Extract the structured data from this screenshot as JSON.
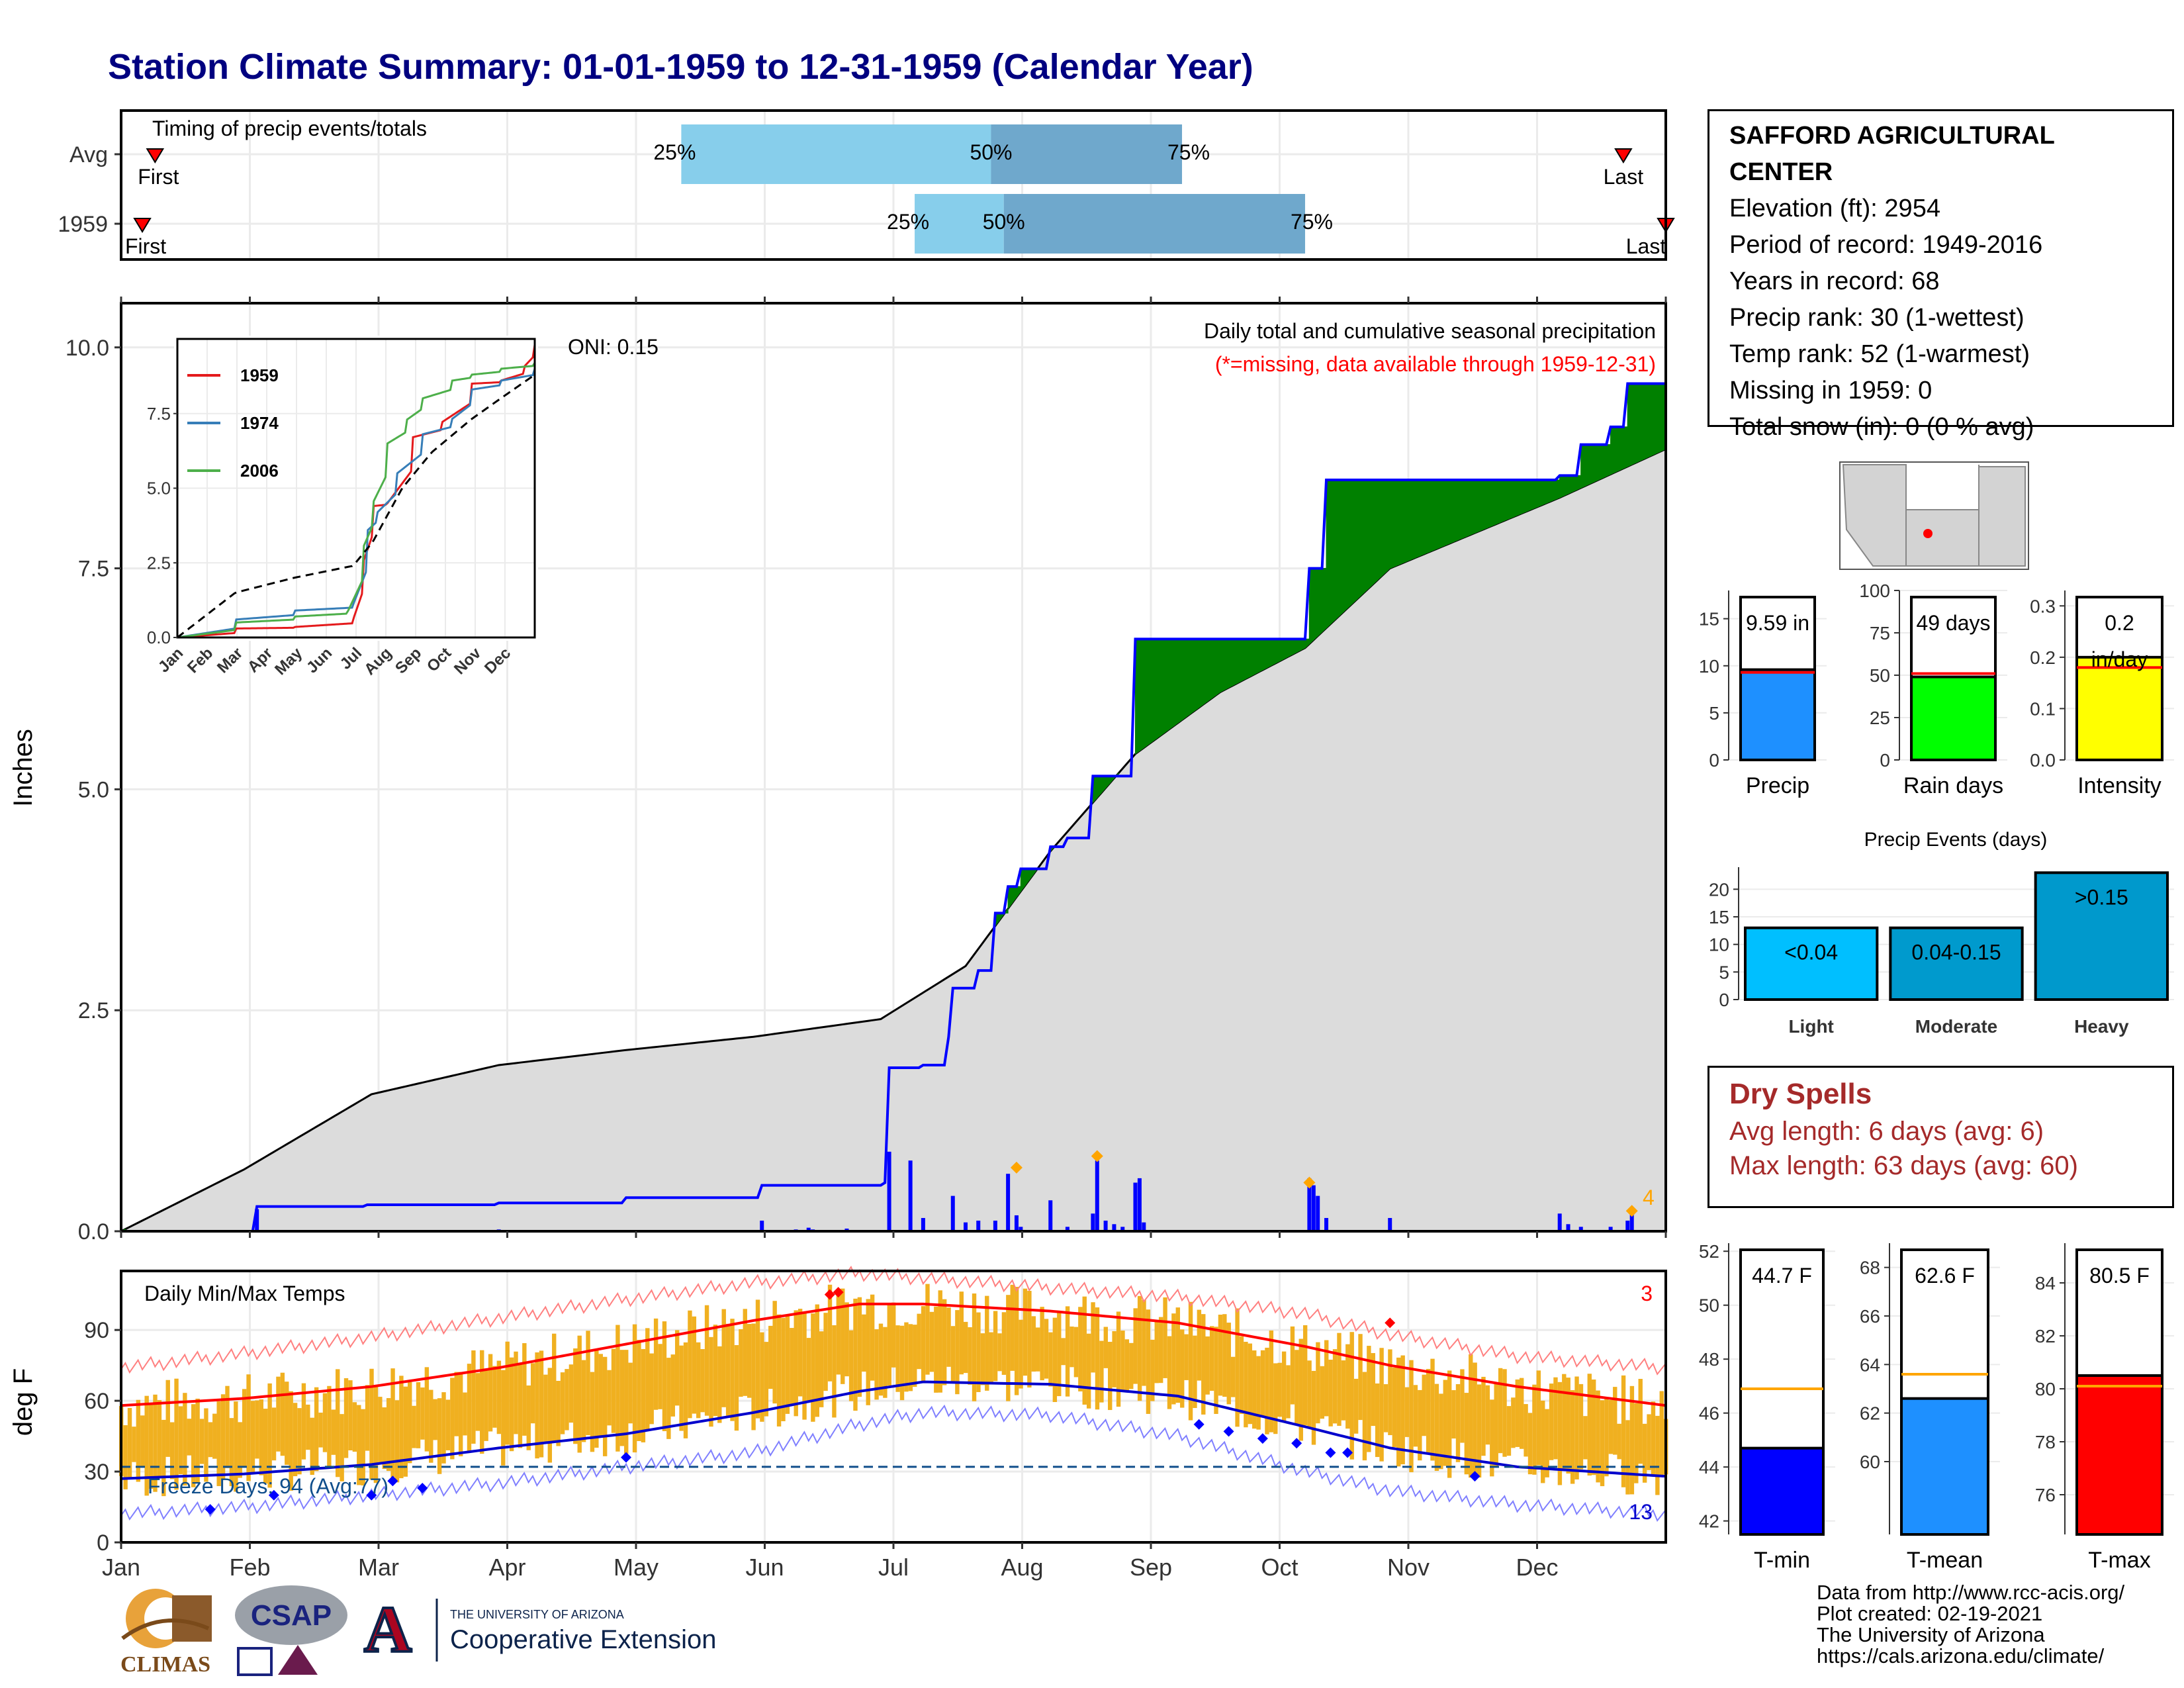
{
  "title": "Station Climate Summary: 01-01-1959 to 12-31-1959 (Calendar Year)",
  "colors": {
    "title": "#000080",
    "precip_area": "#dcdcdc",
    "deficit": "#8b5a00",
    "surplus": "#008000",
    "line": "#0000ff",
    "temp_band": "#f0b020",
    "max_line": "#ff0000",
    "min_line": "#0000cc"
  },
  "timing": {
    "title": "Timing of precip events/totals",
    "rows": [
      {
        "label": "Avg",
        "first": "First",
        "last": "Last",
        "p25": "25%",
        "p50": "50%",
        "p75": "75%",
        "q25_day": 133,
        "q50_day": 206,
        "q75_day": 251,
        "first_day": 9,
        "last_day": 355
      },
      {
        "label": "1959",
        "first": "First",
        "last": "Last",
        "p25": "25%",
        "p50": "50%",
        "p75": "75%",
        "q25_day": 188,
        "q50_day": 209,
        "q75_day": 280,
        "first_day": 6,
        "last_day": 365
      }
    ]
  },
  "chart_data": [
    {
      "type": "area",
      "id": "precip-main",
      "title": "Daily total and cumulative seasonal precipitation",
      "subtitle": "(*=missing, data available through 1959-12-31)",
      "ylabel": "Inches",
      "ylim": [
        0,
        10.5
      ],
      "yticks": [
        "0.0",
        "2.5",
        "5.0",
        "7.5",
        "10.0"
      ],
      "annotation": "ONI: 0.15",
      "count_label": "4",
      "series": [
        {
          "name": "1959 cumulative",
          "x": [
            1,
            32,
            33,
            59,
            90,
            120,
            151,
            152,
            181,
            182,
            190,
            196,
            197,
            203,
            207,
            210,
            213,
            220,
            224,
            230,
            240,
            280,
            281,
            285,
            320,
            340,
            345,
            352,
            356,
            365
          ],
          "values": [
            0,
            0,
            0.28,
            0.3,
            0.32,
            0.38,
            0.38,
            0.52,
            0.55,
            1.85,
            1.88,
            2.2,
            2.75,
            2.95,
            3.6,
            3.9,
            4.1,
            4.35,
            4.45,
            5.15,
            6.7,
            6.7,
            7.5,
            8.5,
            8.5,
            8.55,
            8.9,
            9.1,
            9.59,
            9.59
          ]
        },
        {
          "name": "Avg cumulative",
          "x": [
            1,
            30,
            60,
            90,
            120,
            150,
            180,
            200,
            220,
            240,
            260,
            280,
            300,
            320,
            340,
            365
          ],
          "values": [
            0,
            0.7,
            1.55,
            1.88,
            2.05,
            2.2,
            2.4,
            3.0,
            4.3,
            5.4,
            6.1,
            6.6,
            7.5,
            7.9,
            8.3,
            8.85
          ]
        }
      ]
    },
    {
      "type": "line",
      "id": "inset-cumulative",
      "categories": [
        "Jan",
        "Feb",
        "Mar",
        "Apr",
        "May",
        "Jun",
        "Jul",
        "Aug",
        "Sep",
        "Oct",
        "Nov",
        "Dec"
      ],
      "yticks": [
        "0.0",
        "2.5",
        "5.0",
        "7.5"
      ],
      "ylim": [
        0,
        10
      ],
      "series": [
        {
          "name": "1959",
          "color": "#e41a1c",
          "x": [
            1,
            60,
            120,
            180,
            190,
            200,
            215,
            240,
            270,
            300,
            330,
            355,
            365
          ],
          "values": [
            0,
            0.3,
            0.35,
            0.6,
            2.5,
            4.4,
            4.5,
            6.7,
            7.2,
            8.5,
            8.6,
            9.1,
            9.8
          ]
        },
        {
          "name": "1974",
          "color": "#377eb8",
          "x": [
            1,
            60,
            120,
            180,
            195,
            205,
            225,
            250,
            280,
            300,
            330,
            365
          ],
          "values": [
            0,
            0.6,
            0.9,
            1.1,
            3.6,
            4.2,
            5.5,
            6.8,
            7.3,
            8.3,
            8.6,
            9.0
          ]
        },
        {
          "name": "2006",
          "color": "#4daf4a",
          "x": [
            1,
            60,
            120,
            175,
            190,
            200,
            215,
            235,
            250,
            280,
            300,
            330,
            365
          ],
          "values": [
            0,
            0.5,
            0.7,
            0.9,
            3.0,
            4.5,
            6.5,
            7.3,
            8.0,
            8.6,
            8.8,
            9.0,
            9.2
          ]
        },
        {
          "name": "Avg",
          "color": "#000000",
          "dashed": true,
          "x": [
            1,
            60,
            120,
            180,
            200,
            230,
            260,
            300,
            330,
            365
          ],
          "values": [
            0,
            1.5,
            2.0,
            2.4,
            3.2,
            5.0,
            6.2,
            7.3,
            8.0,
            8.8
          ]
        }
      ]
    },
    {
      "type": "line",
      "id": "daily-temps",
      "title": "Daily Min/Max Temps",
      "ylabel": "deg F",
      "ylim": [
        0,
        115
      ],
      "yticks": [
        "0",
        "30",
        "60",
        "90"
      ],
      "months": [
        "Jan",
        "Feb",
        "Mar",
        "Apr",
        "May",
        "Jun",
        "Jul",
        "Aug",
        "Sep",
        "Oct",
        "Nov",
        "Dec"
      ],
      "freeze_label": "Freeze Days: 94 (Avg:77)",
      "count_hot": "3",
      "count_cold": "13",
      "freeze_line": 32,
      "series": [
        {
          "name": "Avg max",
          "x": [
            1,
            30,
            60,
            90,
            120,
            150,
            175,
            190,
            220,
            250,
            280,
            300,
            330,
            365
          ],
          "values": [
            58,
            61,
            66,
            74,
            84,
            94,
            101,
            101,
            98,
            93,
            83,
            75,
            66,
            58
          ]
        },
        {
          "name": "Avg min",
          "x": [
            1,
            30,
            60,
            90,
            120,
            150,
            175,
            190,
            220,
            250,
            280,
            300,
            330,
            365
          ],
          "values": [
            27,
            29,
            33,
            40,
            46,
            55,
            64,
            68,
            67,
            62,
            49,
            40,
            32,
            28
          ]
        },
        {
          "name": "Record max",
          "x": [
            1,
            30,
            60,
            90,
            120,
            150,
            175,
            190,
            220,
            250,
            280,
            300,
            330,
            365
          ],
          "values": [
            74,
            80,
            87,
            95,
            103,
            110,
            114,
            112,
            108,
            104,
            97,
            88,
            79,
            74
          ]
        },
        {
          "name": "Record min",
          "x": [
            1,
            30,
            60,
            90,
            120,
            150,
            175,
            190,
            220,
            250,
            280,
            300,
            330,
            365
          ],
          "values": [
            12,
            15,
            20,
            25,
            32,
            38,
            50,
            55,
            54,
            45,
            30,
            22,
            16,
            12
          ]
        }
      ]
    },
    {
      "type": "bar",
      "id": "precip-bar",
      "categories": [
        "Precip"
      ],
      "values": [
        9.59
      ],
      "avg": 9.3,
      "ylim": [
        0,
        18
      ],
      "yticks": [
        "0",
        "5",
        "10",
        "15"
      ],
      "label": "9.59 in",
      "color": "#1e90ff"
    },
    {
      "type": "bar",
      "id": "raindays-bar",
      "categories": [
        "Rain days"
      ],
      "values": [
        49
      ],
      "avg": 51,
      "ylim": [
        0,
        100
      ],
      "yticks": [
        "0",
        "25",
        "50",
        "75",
        "100"
      ],
      "label": "49 days",
      "color": "#00ff00"
    },
    {
      "type": "bar",
      "id": "intensity-bar",
      "categories": [
        "Intensity"
      ],
      "values": [
        0.2
      ],
      "avg": 0.18,
      "ylim": [
        0,
        0.33
      ],
      "yticks": [
        "0.0",
        "0.1",
        "0.2",
        "0.3"
      ],
      "label": "0.2",
      "label2": "in/day",
      "color": "#ffff00"
    },
    {
      "type": "bar",
      "id": "events-bar",
      "title": "Precip Events (days)",
      "categories": [
        "Light",
        "Moderate",
        "Heavy"
      ],
      "values": [
        13,
        13,
        23
      ],
      "bar_labels": [
        "<0.04",
        "0.04-0.15",
        ">0.15"
      ],
      "ylim": [
        0,
        24
      ],
      "yticks": [
        "0",
        "5",
        "10",
        "15",
        "20"
      ],
      "colors": [
        "#00bfff",
        "#009acd",
        "#0099cc"
      ]
    },
    {
      "type": "bar",
      "id": "tmin-bar",
      "categories": [
        "T-min"
      ],
      "values": [
        44.7
      ],
      "avg": 46.9,
      "ylim": [
        41.5,
        52.3
      ],
      "yticks": [
        "42",
        "44",
        "46",
        "48",
        "50",
        "52"
      ],
      "label": "44.7 F",
      "color": "#0000ff"
    },
    {
      "type": "bar",
      "id": "tmean-bar",
      "categories": [
        "T-mean"
      ],
      "values": [
        62.6
      ],
      "avg": 63.6,
      "ylim": [
        57,
        69
      ],
      "yticks": [
        "60",
        "62",
        "64",
        "66",
        "68"
      ],
      "label": "62.6 F",
      "color": "#1e90ff"
    },
    {
      "type": "bar",
      "id": "tmax-bar",
      "categories": [
        "T-max"
      ],
      "values": [
        80.5
      ],
      "avg": 80.1,
      "ylim": [
        74.5,
        85.5
      ],
      "yticks": [
        "76",
        "78",
        "80",
        "82",
        "84"
      ],
      "label": "80.5 F",
      "color": "#ff0000"
    }
  ],
  "station": {
    "name": "SAFFORD AGRICULTURAL CENTER",
    "elevation": "Elevation (ft): 2954",
    "period": "Period of record: 1949-2016",
    "years": "Years in record: 68",
    "precip_rank": "Precip rank: 30 (1-wettest)",
    "temp_rank": "Temp rank: 52 (1-warmest)",
    "missing": "Missing in 1959: 0",
    "snow": "Total snow (in): 0 (0 % avg)"
  },
  "dry_spells": {
    "title": "Dry Spells",
    "avg": "Avg length: 6 days (avg: 6)",
    "max": "Max length: 63 days (avg: 60)"
  },
  "credits": {
    "line1": "Data from http://www.rcc-acis.org/",
    "line2": "Plot created: 02-19-2021",
    "line3": "The University of Arizona",
    "line4": "https://cals.arizona.edu/climate/"
  },
  "logos": {
    "climas": "CLIMAS",
    "csap": "CSAP",
    "ua_top": "THE UNIVERSITY OF ARIZONA",
    "ua_bottom": "Cooperative Extension"
  }
}
